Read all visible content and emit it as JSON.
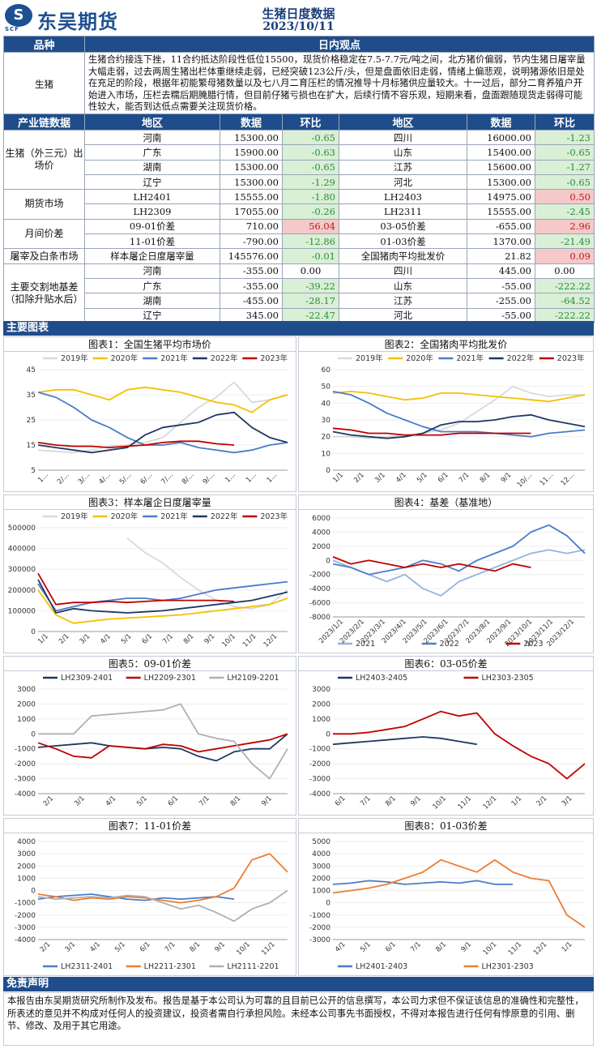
{
  "header": {
    "logo_mark": "S",
    "logo_sub": "SCF",
    "logo_text": "东吴期货",
    "title": "生猪日度数据",
    "date": "2023/10/11"
  },
  "view": {
    "col1": "品种",
    "col2": "日内观点",
    "product": "生猪",
    "text": "生猪合约接连下挫，11合约抵达阶段性低位15500，现货价格稳定在7.5-7.7元/吨之间，北方猪价偏弱，节内生猪日屠宰量大幅走弱，过去两周生猪出栏体重继续走弱，已经突破123公斤/头，但是盘面依旧走弱，情绪上偏悲观，说明猪源依旧是处在充足的阶段，根据年初能繁母猪数量以及七八月二育压栏的情况推导十月标猪供应量较大。十一过后，部分二育养殖户开始进入市场，压栏去糯后期腌腊行情，但目前仔猪亏损也在扩大，后续行情不容乐观，短期来看，盘面跟随现货走弱得可能性较大，能否到达低点需要关注现货价格。"
  },
  "chain": {
    "headers": [
      "产业链数据",
      "地区",
      "数据",
      "环比",
      "地区",
      "数据",
      "环比"
    ],
    "groups": [
      {
        "label": "生猪（外三元）出场价",
        "rows": [
          [
            "河南",
            "15300.00",
            "-0.65",
            "四川",
            "16000.00",
            "-1.23"
          ],
          [
            "广东",
            "15900.00",
            "-0.63",
            "山东",
            "15400.00",
            "-0.65"
          ],
          [
            "湖南",
            "15300.00",
            "-0.65",
            "江苏",
            "15600.00",
            "-1.27"
          ],
          [
            "辽宁",
            "15300.00",
            "-1.29",
            "河北",
            "15300.00",
            "-0.65"
          ]
        ]
      },
      {
        "label": "期货市场",
        "rows": [
          [
            "LH2401",
            "15555.00",
            "-1.80",
            "LH2403",
            "14975.00",
            "0.50"
          ],
          [
            "LH2309",
            "17055.00",
            "-0.26",
            "LH2311",
            "15555.00",
            "-2.45"
          ]
        ]
      },
      {
        "label": "月间价差",
        "rows": [
          [
            "09-01价差",
            "710.00",
            "56.04",
            "03-05价差",
            "-655.00",
            "2.96"
          ],
          [
            "11-01价差",
            "-790.00",
            "-12.86",
            "01-03价差",
            "1370.00",
            "-21.49"
          ]
        ]
      },
      {
        "label": "屠宰及白条市场",
        "rows": [
          [
            "样本屠企日度屠宰量",
            "145576.00",
            "-0.01",
            "全国猪肉平均批发价",
            "21.82",
            "0.09"
          ]
        ]
      },
      {
        "label": "主要交割地基差（扣除升贴水后）",
        "rows": [
          [
            "河南",
            "-355.00",
            "0.00",
            "四川",
            "445.00",
            "0.00"
          ],
          [
            "广东",
            "-355.00",
            "-39.22",
            "山东",
            "-55.00",
            "-222.22"
          ],
          [
            "湖南",
            "-455.00",
            "-28.17",
            "江苏",
            "-255.00",
            "-64.52"
          ],
          [
            "辽宁",
            "345.00",
            "-22.47",
            "河北",
            "-55.00",
            "-222.22"
          ]
        ]
      }
    ]
  },
  "charts_section": "主要图表",
  "colors": {
    "y2019": "#d9d9d9",
    "y2020": "#f5c000",
    "y2021": "#4a7cc9",
    "y2022": "#1f3864",
    "y2023": "#c00000",
    "light_blue": "#8fb4e3",
    "orange": "#ed7d31",
    "gray": "#b0b0b0"
  },
  "chart_data": [
    {
      "type": "line",
      "title": "图表1：全国生猪平均市场价",
      "legend": [
        "2019年",
        "2020年",
        "2021年",
        "2022年",
        "2023年"
      ],
      "yticks": [
        "45",
        "35",
        "25",
        "15",
        "5"
      ],
      "ylim": [
        5,
        45
      ],
      "xticks": [
        "1...",
        "2/...",
        "3/...",
        "4/...",
        "5/...",
        "6/...",
        "7/...",
        "8/...",
        "9/...",
        "1...",
        "1...",
        "1..."
      ],
      "series": [
        {
          "name": "2019年",
          "color": "y2019",
          "values": [
            13,
            12.5,
            12,
            13,
            14.5,
            15,
            16,
            18,
            24,
            30,
            34,
            40,
            32,
            33,
            35
          ]
        },
        {
          "name": "2020年",
          "color": "y2020",
          "values": [
            36,
            37,
            37,
            35,
            33,
            37,
            38,
            37,
            36,
            34,
            32,
            31,
            28,
            33,
            35
          ]
        },
        {
          "name": "2021年",
          "color": "y2021",
          "values": [
            36,
            34,
            30,
            25,
            22,
            18,
            15,
            15,
            16,
            14,
            13,
            12,
            13,
            15,
            16
          ]
        },
        {
          "name": "2022年",
          "color": "y2022",
          "values": [
            15,
            14,
            13,
            12,
            13,
            14,
            19,
            22,
            23,
            24,
            27,
            28,
            22,
            18,
            16
          ]
        },
        {
          "name": "2023年",
          "color": "y2023",
          "values": [
            16,
            15,
            14.5,
            14.5,
            14,
            14.5,
            15,
            16,
            16.5,
            16.5,
            15.5,
            15,
            null,
            null,
            null
          ]
        }
      ]
    },
    {
      "type": "line",
      "title": "图表2：全国猪肉平均批发价",
      "legend": [
        "2019年",
        "2020年",
        "2021年",
        "2022年",
        "2023年"
      ],
      "yticks": [
        "60",
        "50",
        "40",
        "30",
        "20",
        "10",
        "0"
      ],
      "ylim": [
        0,
        60
      ],
      "xticks": [
        "1/1",
        "2/1",
        "3/1",
        "4/1",
        "5/1",
        "6/1",
        "7/1",
        "8/1",
        "9/1",
        "10/...",
        "11...",
        "12..."
      ],
      "series": [
        {
          "name": "2019年",
          "color": "y2019",
          "values": [
            20,
            20,
            19,
            20,
            21,
            22,
            24,
            28,
            35,
            42,
            50,
            46,
            44,
            45,
            45
          ]
        },
        {
          "name": "2020年",
          "color": "y2020",
          "values": [
            46,
            47,
            46,
            44,
            42,
            43,
            46,
            46,
            45,
            44,
            43,
            42,
            41,
            43,
            45
          ]
        },
        {
          "name": "2021年",
          "color": "y2021",
          "values": [
            47,
            45,
            40,
            34,
            30,
            26,
            23,
            23,
            23,
            22,
            21,
            20,
            22,
            23,
            24
          ]
        },
        {
          "name": "2022年",
          "color": "y2022",
          "values": [
            23,
            21,
            20,
            19,
            20,
            22,
            27,
            29,
            29,
            30,
            32,
            33,
            30,
            28,
            26
          ]
        },
        {
          "name": "2023年",
          "color": "y2023",
          "values": [
            25,
            24,
            22,
            22,
            21,
            21,
            21,
            22,
            22,
            22,
            22,
            22,
            null,
            null,
            null
          ]
        }
      ]
    },
    {
      "type": "line",
      "title": "图表3：样本屠企日度屠宰量",
      "legend": [
        "2019年",
        "2020年",
        "2021年",
        "2022年",
        "2023年"
      ],
      "yticks": [
        "500000",
        "400000",
        "300000",
        "200000",
        "100000",
        "0"
      ],
      "ylim": [
        0,
        500000
      ],
      "xticks": [
        "1/1",
        "2/1",
        "3/1",
        "4/1",
        "5/1",
        "6/1",
        "7/1",
        "8/1",
        "9/1",
        "10/1",
        "11/1",
        "12/1"
      ],
      "series": [
        {
          "name": "2019年",
          "color": "y2019",
          "values": [
            null,
            null,
            null,
            null,
            null,
            450000,
            380000,
            330000,
            260000,
            200000,
            150000,
            120000,
            110000,
            130000,
            200000
          ]
        },
        {
          "name": "2020年",
          "color": "y2020",
          "values": [
            200000,
            80000,
            40000,
            50000,
            60000,
            65000,
            70000,
            75000,
            80000,
            90000,
            100000,
            110000,
            120000,
            130000,
            160000
          ]
        },
        {
          "name": "2021年",
          "color": "y2021",
          "values": [
            230000,
            100000,
            120000,
            140000,
            150000,
            160000,
            160000,
            150000,
            160000,
            180000,
            200000,
            210000,
            220000,
            230000,
            240000
          ]
        },
        {
          "name": "2022年",
          "color": "y2022",
          "values": [
            250000,
            90000,
            110000,
            100000,
            95000,
            90000,
            95000,
            100000,
            110000,
            120000,
            130000,
            140000,
            150000,
            170000,
            190000
          ]
        },
        {
          "name": "2023年",
          "color": "y2023",
          "values": [
            280000,
            130000,
            140000,
            140000,
            145000,
            140000,
            145000,
            150000,
            150000,
            150000,
            150000,
            145000,
            null,
            null,
            null
          ]
        }
      ]
    },
    {
      "type": "line",
      "title": "图表4：基差（基准地）",
      "legend": [
        "2021",
        "2022",
        "2023"
      ],
      "yticks": [
        "6000",
        "4000",
        "2000",
        "0",
        "-2000",
        "-4000",
        "-6000",
        "-8000"
      ],
      "ylim": [
        -8000,
        6000
      ],
      "xticks": [
        "2023/1/1",
        "2023/2/1",
        "2023/3/1",
        "2023/4/1",
        "2023/5/1",
        "2023/6/1",
        "2023/7/1",
        "2023/8/1",
        "2023/9/1",
        "2023/10/1",
        "2023/11/1",
        "2023/12/1"
      ],
      "series": [
        {
          "name": "2021",
          "color": "light_blue",
          "values": [
            0,
            -1000,
            -2000,
            -3000,
            -2000,
            -4000,
            -5000,
            -3000,
            -2000,
            -1000,
            0,
            1000,
            1500,
            1000,
            1500
          ]
        },
        {
          "name": "2022",
          "color": "y2021",
          "values": [
            -500,
            -1000,
            -2000,
            -1500,
            -1000,
            0,
            -500,
            -1500,
            0,
            1000,
            2000,
            4000,
            5000,
            3500,
            1000
          ]
        },
        {
          "name": "2023",
          "color": "y2023",
          "values": [
            500,
            -500,
            0,
            -500,
            -1000,
            -500,
            -1000,
            -500,
            -1000,
            -1500,
            -500,
            -1000,
            null,
            null,
            null
          ]
        }
      ]
    },
    {
      "type": "line",
      "title": "图表5：09-01价差",
      "legend": [
        "LH2309-2401",
        "LH2209-2301",
        "LH2109-2201"
      ],
      "yticks": [
        "3000",
        "2000",
        "1000",
        "0",
        "-1000",
        "-2000",
        "-3000",
        "-4000"
      ],
      "ylim": [
        -4000,
        3000
      ],
      "xticks": [
        "2/1",
        "3/1",
        "4/1",
        "5/1",
        "6/1",
        "7/1",
        "8/1",
        "9/1"
      ],
      "series": [
        {
          "name": "LH2309-2401",
          "color": "y2022",
          "values": [
            -900,
            -800,
            -700,
            -600,
            -800,
            -900,
            -1000,
            -900,
            -1000,
            -1500,
            -1800,
            -1200,
            -1000,
            -1000,
            0
          ]
        },
        {
          "name": "LH2209-2301",
          "color": "y2023",
          "values": [
            -600,
            -1000,
            -1500,
            -1600,
            -800,
            -900,
            -1000,
            -700,
            -800,
            -1200,
            -1000,
            -800,
            -600,
            -400,
            0
          ]
        },
        {
          "name": "LH2109-2201",
          "color": "gray",
          "values": [
            0,
            0,
            0,
            1200,
            1300,
            1400,
            1500,
            1600,
            2000,
            0,
            -300,
            -500,
            -2000,
            -3000,
            -1000
          ]
        }
      ]
    },
    {
      "type": "line",
      "title": "图表6：03-05价差",
      "legend": [
        "LH2403-2405",
        "LH2303-2305"
      ],
      "yticks": [
        "3000",
        "2000",
        "1000",
        "0",
        "-1000",
        "-2000",
        "-3000",
        "-4000"
      ],
      "ylim": [
        -4000,
        3000
      ],
      "xticks": [
        "6/1",
        "7/1",
        "8/1",
        "9/1",
        "10/1",
        "11/1",
        "12/1",
        "1/1",
        "2/1",
        "3/1"
      ],
      "series": [
        {
          "name": "LH2403-2405",
          "color": "y2022",
          "values": [
            -700,
            -600,
            -500,
            -400,
            -300,
            -200,
            -300,
            -500,
            -700,
            null,
            null,
            null,
            null,
            null,
            null
          ]
        },
        {
          "name": "LH2303-2305",
          "color": "y2023",
          "values": [
            0,
            0,
            100,
            300,
            500,
            1000,
            1500,
            1200,
            1400,
            0,
            -800,
            -1500,
            -2000,
            -3000,
            -2000
          ]
        }
      ]
    },
    {
      "type": "line",
      "title": "图表7：11-01价差",
      "legend": [
        "LH2311-2401",
        "LH2211-2301",
        "LH2111-2201"
      ],
      "yticks": [
        "4000",
        "3000",
        "2000",
        "1000",
        "0",
        "-1000",
        "-2000",
        "-3000",
        "-4000"
      ],
      "ylim": [
        -4000,
        4000
      ],
      "xticks": [
        "2/1",
        "3/1",
        "4/1",
        "5/1",
        "6/1",
        "7/1",
        "8/1",
        "9/1",
        "10/1",
        "11/1"
      ],
      "series": [
        {
          "name": "LH2311-2401",
          "color": "y2021",
          "values": [
            -700,
            -500,
            -400,
            -300,
            -500,
            -700,
            -800,
            -600,
            -700,
            -600,
            -500,
            -700,
            null,
            null,
            null
          ]
        },
        {
          "name": "LH2211-2301",
          "color": "orange",
          "values": [
            -300,
            -500,
            -800,
            -600,
            -700,
            -500,
            -600,
            -800,
            -1000,
            -800,
            -500,
            200,
            2500,
            3000,
            1500
          ]
        },
        {
          "name": "LH2111-2201",
          "color": "gray",
          "values": [
            -500,
            -700,
            -600,
            -500,
            -600,
            -400,
            -500,
            -1000,
            -1500,
            -1200,
            -1800,
            -2500,
            -1500,
            -1000,
            0
          ]
        }
      ]
    },
    {
      "type": "line",
      "title": "图表8：01-03价差",
      "legend": [
        "LH2401-2403",
        "LH2301-2303"
      ],
      "yticks": [
        "5000",
        "4000",
        "3000",
        "2000",
        "1000",
        "0",
        "-1000",
        "-2000",
        "-3000"
      ],
      "ylim": [
        -3000,
        5000
      ],
      "xticks": [
        "4/1",
        "5/1",
        "6/1",
        "7/1",
        "8/1",
        "9/1",
        "10/1",
        "11/1",
        "12/1",
        "1/1"
      ],
      "series": [
        {
          "name": "LH2401-2403",
          "color": "y2021",
          "values": [
            1500,
            1600,
            1800,
            1700,
            1500,
            1600,
            1700,
            1600,
            1800,
            1500,
            1500,
            null,
            null,
            null,
            null
          ]
        },
        {
          "name": "LH2301-2303",
          "color": "orange",
          "values": [
            800,
            1000,
            1200,
            1500,
            2000,
            2500,
            3500,
            3000,
            2500,
            3500,
            2500,
            2000,
            1800,
            -1000,
            -2000
          ]
        }
      ]
    }
  ],
  "disclaimer": {
    "title": "免责声明",
    "text": "本报告由东吴期货研究所制作及发布。报告是基于本公司认为可靠的且目前已公开的信息撰写，本公司力求但不保证该信息的准确性和完整性，所表述的意见并不构成对任何人的投资建议，投资者需自行承担风险。未经本公司事先书面授权，不得对本报告进行任何有悖原意的引用、删节、修改、及用于其它用途。"
  }
}
